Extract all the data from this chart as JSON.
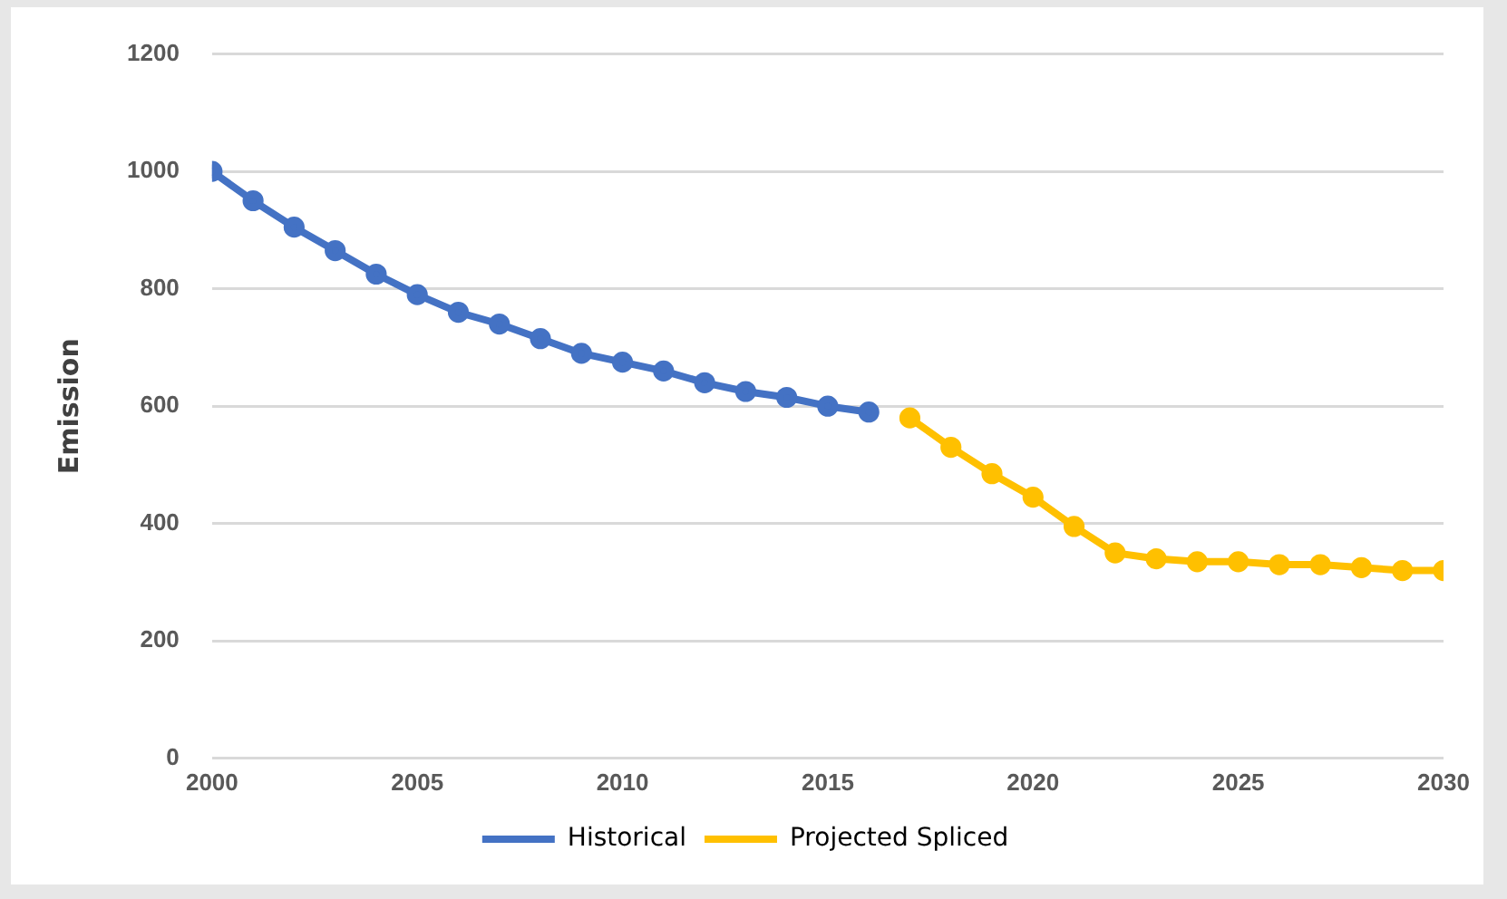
{
  "chart_data": {
    "type": "line",
    "ylabel": "Emission",
    "series": [
      {
        "name": "Historical",
        "color": "#4472c4",
        "x": [
          2000,
          2001,
          2002,
          2003,
          2004,
          2005,
          2006,
          2007,
          2008,
          2009,
          2010,
          2011,
          2012,
          2013,
          2014,
          2015,
          2016
        ],
        "values": [
          1000,
          950,
          905,
          865,
          825,
          790,
          760,
          740,
          715,
          690,
          675,
          660,
          640,
          625,
          615,
          600,
          590
        ]
      },
      {
        "name": "Projected Spliced",
        "color": "#ffc000",
        "x": [
          2017,
          2018,
          2019,
          2020,
          2021,
          2022,
          2023,
          2024,
          2025,
          2026,
          2027,
          2028,
          2029,
          2030
        ],
        "values": [
          580,
          530,
          485,
          445,
          395,
          350,
          340,
          335,
          335,
          330,
          330,
          325,
          320,
          320
        ]
      }
    ],
    "xlim": [
      2000,
      2030
    ],
    "xticks": [
      2000,
      2005,
      2010,
      2015,
      2020,
      2025,
      2030
    ],
    "ylim": [
      0,
      1200
    ],
    "yticks": [
      0,
      200,
      400,
      600,
      800,
      1000,
      1200
    ],
    "grid": "y",
    "legend": "bottom",
    "marker": "circle",
    "line_style": "solid"
  }
}
